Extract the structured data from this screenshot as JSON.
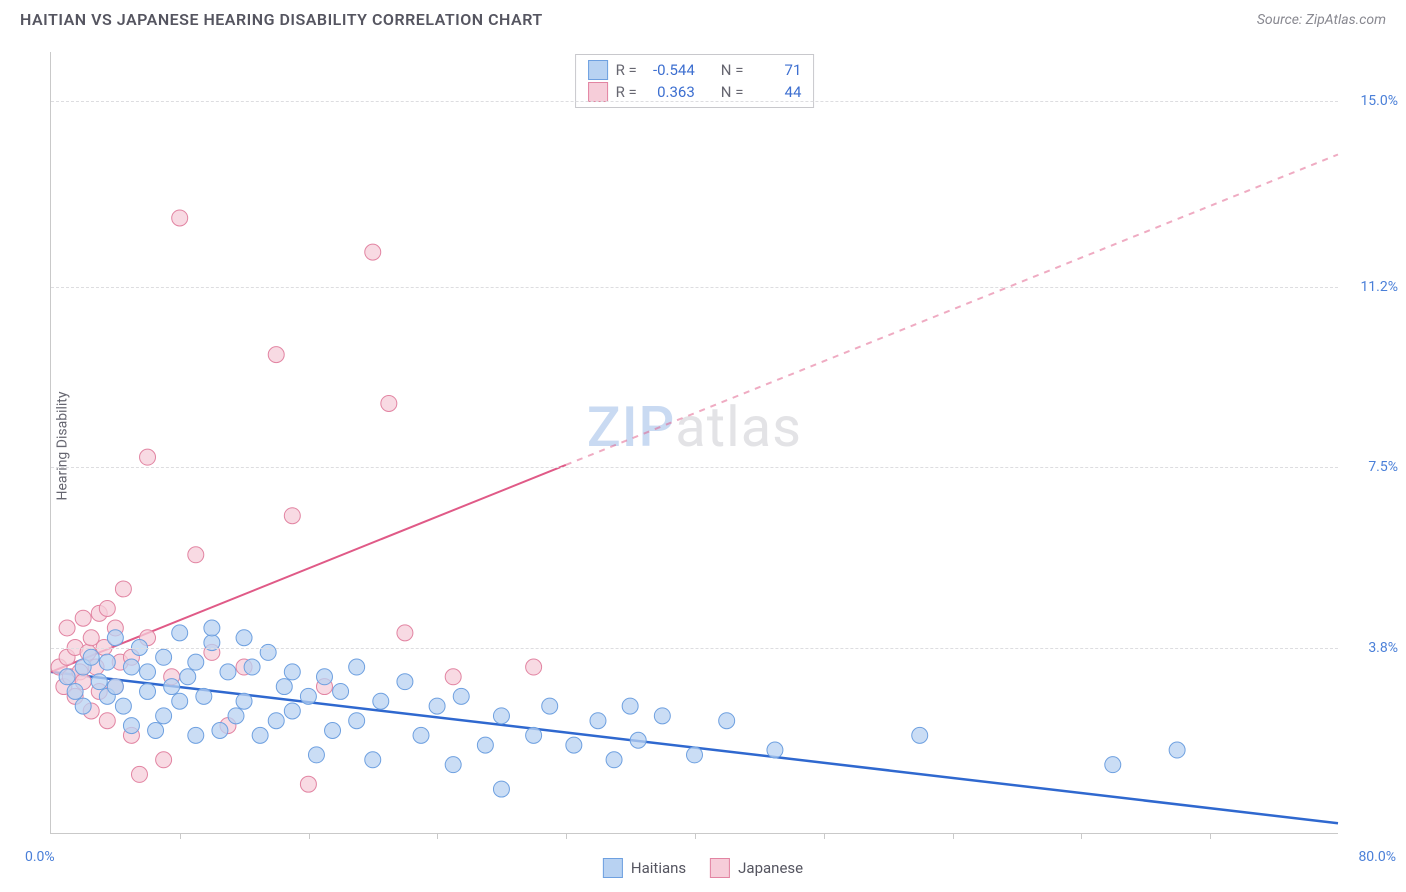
{
  "header": {
    "title": "HAITIAN VS JAPANESE HEARING DISABILITY CORRELATION CHART",
    "source": "Source: ZipAtlas.com"
  },
  "watermark_zip": "ZIP",
  "watermark_atlas": "atlas",
  "chart": {
    "type": "scatter",
    "background_color": "#ffffff",
    "grid_color": "#dddde0",
    "axis_color": "#c9c9c9",
    "ylabel": "Hearing Disability",
    "label_color": "#666670",
    "tick_label_color": "#4a7fd8",
    "xlim": [
      0,
      80
    ],
    "ylim": [
      0,
      16
    ],
    "x_min_label": "0.0%",
    "x_max_label": "80.0%",
    "x_tick_step": 8,
    "y_ticks": [
      {
        "value": 3.8,
        "label": "3.8%"
      },
      {
        "value": 7.5,
        "label": "7.5%"
      },
      {
        "value": 11.2,
        "label": "11.2%"
      },
      {
        "value": 15.0,
        "label": "15.0%"
      }
    ],
    "series": [
      {
        "name": "Haitians",
        "marker_fill": "#b8d2f2",
        "marker_stroke": "#6ea0e0",
        "marker_radius": 8,
        "line_color": "#2f68cf",
        "line_width": 2.5,
        "line_dash": "none",
        "regression": {
          "x1": 0,
          "y1": 3.3,
          "x2": 80,
          "y2": 0.2
        },
        "R": "-0.544",
        "N": "71",
        "points": [
          [
            1.0,
            3.2
          ],
          [
            1.5,
            2.9
          ],
          [
            2.0,
            3.4
          ],
          [
            2.0,
            2.6
          ],
          [
            2.5,
            3.6
          ],
          [
            3.0,
            3.1
          ],
          [
            3.5,
            2.8
          ],
          [
            3.5,
            3.5
          ],
          [
            4.0,
            3.0
          ],
          [
            4.0,
            4.0
          ],
          [
            4.5,
            2.6
          ],
          [
            5.0,
            3.4
          ],
          [
            5.0,
            2.2
          ],
          [
            5.5,
            3.8
          ],
          [
            6.0,
            2.9
          ],
          [
            6.0,
            3.3
          ],
          [
            6.5,
            2.1
          ],
          [
            7.0,
            3.6
          ],
          [
            7.0,
            2.4
          ],
          [
            7.5,
            3.0
          ],
          [
            8.0,
            4.1
          ],
          [
            8.0,
            2.7
          ],
          [
            8.5,
            3.2
          ],
          [
            9.0,
            2.0
          ],
          [
            9.0,
            3.5
          ],
          [
            9.5,
            2.8
          ],
          [
            10.0,
            3.9
          ],
          [
            10.0,
            4.2
          ],
          [
            10.5,
            2.1
          ],
          [
            11.0,
            3.3
          ],
          [
            11.5,
            2.4
          ],
          [
            12.0,
            4.0
          ],
          [
            12.0,
            2.7
          ],
          [
            12.5,
            3.4
          ],
          [
            13.0,
            2.0
          ],
          [
            13.5,
            3.7
          ],
          [
            14.0,
            2.3
          ],
          [
            14.5,
            3.0
          ],
          [
            15.0,
            2.5
          ],
          [
            15.0,
            3.3
          ],
          [
            16.0,
            2.8
          ],
          [
            16.5,
            1.6
          ],
          [
            17.0,
            3.2
          ],
          [
            17.5,
            2.1
          ],
          [
            18.0,
            2.9
          ],
          [
            19.0,
            2.3
          ],
          [
            19.0,
            3.4
          ],
          [
            20.0,
            1.5
          ],
          [
            20.5,
            2.7
          ],
          [
            22.0,
            3.1
          ],
          [
            23.0,
            2.0
          ],
          [
            24.0,
            2.6
          ],
          [
            25.0,
            1.4
          ],
          [
            25.5,
            2.8
          ],
          [
            27.0,
            1.8
          ],
          [
            28.0,
            2.4
          ],
          [
            28.0,
            0.9
          ],
          [
            30.0,
            2.0
          ],
          [
            31.0,
            2.6
          ],
          [
            32.5,
            1.8
          ],
          [
            34.0,
            2.3
          ],
          [
            35.0,
            1.5
          ],
          [
            36.0,
            2.6
          ],
          [
            36.5,
            1.9
          ],
          [
            38.0,
            2.4
          ],
          [
            40.0,
            1.6
          ],
          [
            42.0,
            2.3
          ],
          [
            45.0,
            1.7
          ],
          [
            54.0,
            2.0
          ],
          [
            66.0,
            1.4
          ],
          [
            70.0,
            1.7
          ]
        ]
      },
      {
        "name": "Japanese",
        "marker_fill": "#f6cdd9",
        "marker_stroke": "#e284a2",
        "marker_radius": 8,
        "line_color": "#e05a87",
        "line_width": 2,
        "line_dash": "6,6",
        "regression": {
          "x1": 0,
          "y1": 3.3,
          "x2": 80,
          "y2": 13.9
        },
        "regression_solid_until_x": 32,
        "R": "0.363",
        "N": "44",
        "points": [
          [
            0.5,
            3.4
          ],
          [
            0.8,
            3.0
          ],
          [
            1.0,
            3.6
          ],
          [
            1.0,
            4.2
          ],
          [
            1.2,
            3.2
          ],
          [
            1.5,
            2.8
          ],
          [
            1.5,
            3.8
          ],
          [
            1.8,
            3.3
          ],
          [
            2.0,
            4.4
          ],
          [
            2.0,
            3.1
          ],
          [
            2.3,
            3.7
          ],
          [
            2.5,
            2.5
          ],
          [
            2.5,
            4.0
          ],
          [
            2.8,
            3.4
          ],
          [
            3.0,
            4.5
          ],
          [
            3.0,
            2.9
          ],
          [
            3.3,
            3.8
          ],
          [
            3.5,
            4.6
          ],
          [
            3.5,
            2.3
          ],
          [
            4.0,
            3.0
          ],
          [
            4.0,
            4.2
          ],
          [
            4.3,
            3.5
          ],
          [
            4.5,
            5.0
          ],
          [
            5.0,
            2.0
          ],
          [
            5.0,
            3.6
          ],
          [
            5.5,
            1.2
          ],
          [
            6.0,
            4.0
          ],
          [
            6.0,
            7.7
          ],
          [
            7.0,
            1.5
          ],
          [
            7.5,
            3.2
          ],
          [
            8.0,
            12.6
          ],
          [
            9.0,
            5.7
          ],
          [
            10.0,
            3.7
          ],
          [
            11.0,
            2.2
          ],
          [
            12.0,
            3.4
          ],
          [
            14.0,
            9.8
          ],
          [
            15.0,
            6.5
          ],
          [
            16.0,
            1.0
          ],
          [
            17.0,
            3.0
          ],
          [
            20.0,
            11.9
          ],
          [
            21.0,
            8.8
          ],
          [
            22.0,
            4.1
          ],
          [
            25.0,
            3.2
          ],
          [
            30.0,
            3.4
          ]
        ]
      }
    ]
  },
  "legend_stats": {
    "R_label": "R =",
    "N_label": "N ="
  },
  "bottom_legend": {
    "items": [
      "Haitians",
      "Japanese"
    ]
  }
}
